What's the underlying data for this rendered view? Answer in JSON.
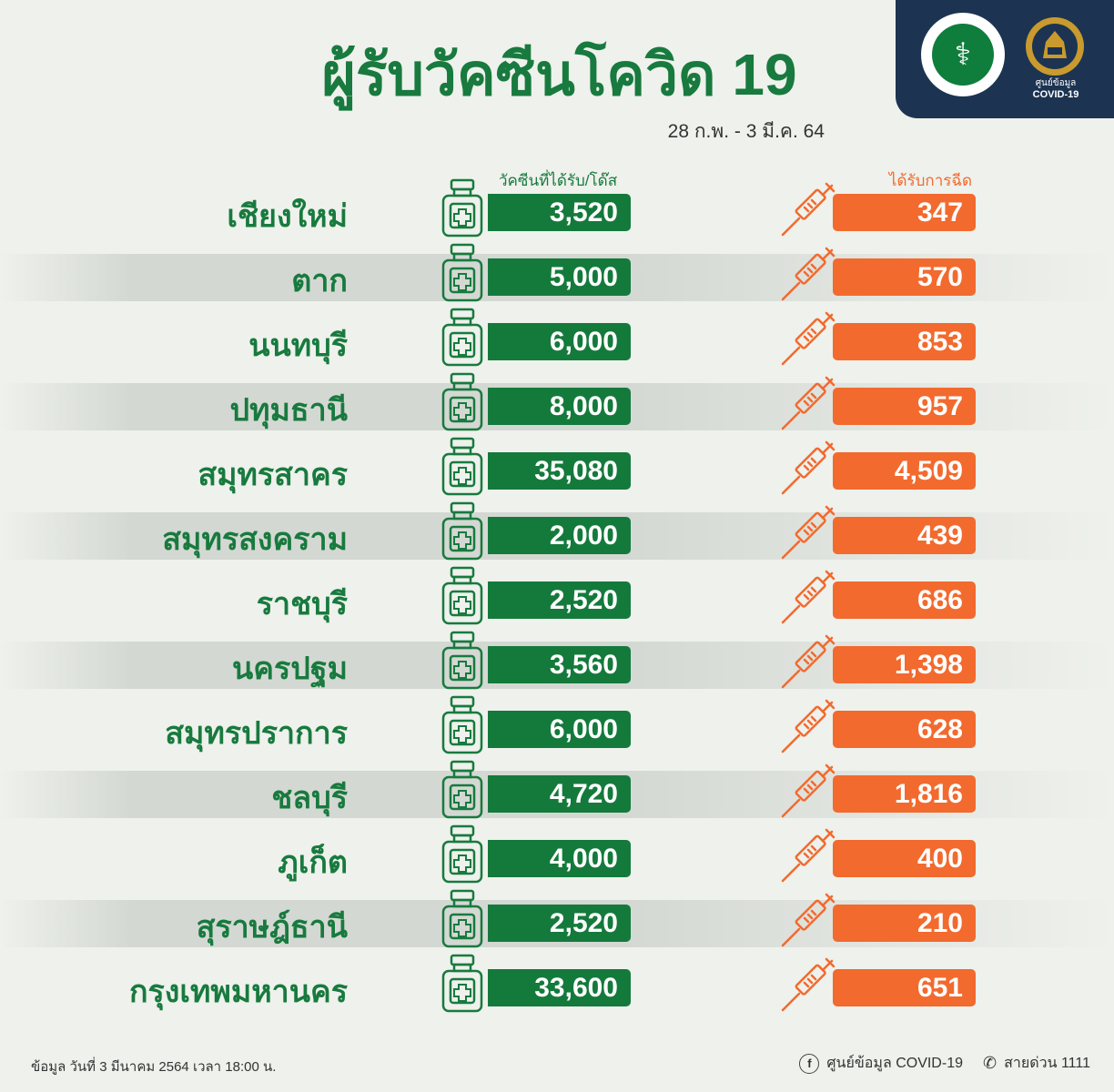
{
  "header": {
    "title": "ผู้รับวัคซีนโควิด 19",
    "date_range": "28 ก.พ. - 3 มี.ค. 64",
    "logo_text": "กระทรวงสาธารณสุข MINISTRY OF PUBLIC HEALTH",
    "emblem_label_line1": "ศูนย์ข้อมูล",
    "emblem_label_line2": "COVID-19"
  },
  "columns": {
    "vaccine": "วัคซีนที่ได้รับ/โด๊ส",
    "injected": "ได้รับการฉีด"
  },
  "rows": [
    {
      "province": "เชียงใหม่",
      "vaccine": "3,520",
      "injected": "347"
    },
    {
      "province": "ตาก",
      "vaccine": "5,000",
      "injected": "570"
    },
    {
      "province": "นนทบุรี",
      "vaccine": "6,000",
      "injected": "853"
    },
    {
      "province": "ปทุมธานี",
      "vaccine": "8,000",
      "injected": "957"
    },
    {
      "province": "สมุทรสาคร",
      "vaccine": "35,080",
      "injected": "4,509"
    },
    {
      "province": "สมุทรสงคราม",
      "vaccine": "2,000",
      "injected": "439"
    },
    {
      "province": "ราชบุรี",
      "vaccine": "2,520",
      "injected": "686"
    },
    {
      "province": "นครปฐม",
      "vaccine": "3,560",
      "injected": "1,398"
    },
    {
      "province": "สมุทรปราการ",
      "vaccine": "6,000",
      "injected": "628"
    },
    {
      "province": "ชลบุรี",
      "vaccine": "4,720",
      "injected": "1,816"
    },
    {
      "province": "ภูเก็ต",
      "vaccine": "4,000",
      "injected": "400"
    },
    {
      "province": "สุราษฎ์ธานี",
      "vaccine": "2,520",
      "injected": "210"
    },
    {
      "province": "กรุงเทพมหานคร",
      "vaccine": "33,600",
      "injected": "651"
    }
  ],
  "footer": {
    "data_note": "ข้อมูล วันที่ 3 มีนาคม 2564 เวลา 18:00 น.",
    "facebook": "ศูนย์ข้อมูล COVID-19",
    "hotline": "สายด่วน 1111"
  },
  "colors": {
    "green": "#147a3b",
    "orange": "#f26a2e",
    "navy": "#1c3452",
    "background": "#eef1ec"
  },
  "icons": {
    "vaccine_bottle": "vaccine-bottle-icon",
    "syringe": "syringe-icon",
    "facebook": "facebook-icon",
    "phone": "phone-icon"
  }
}
